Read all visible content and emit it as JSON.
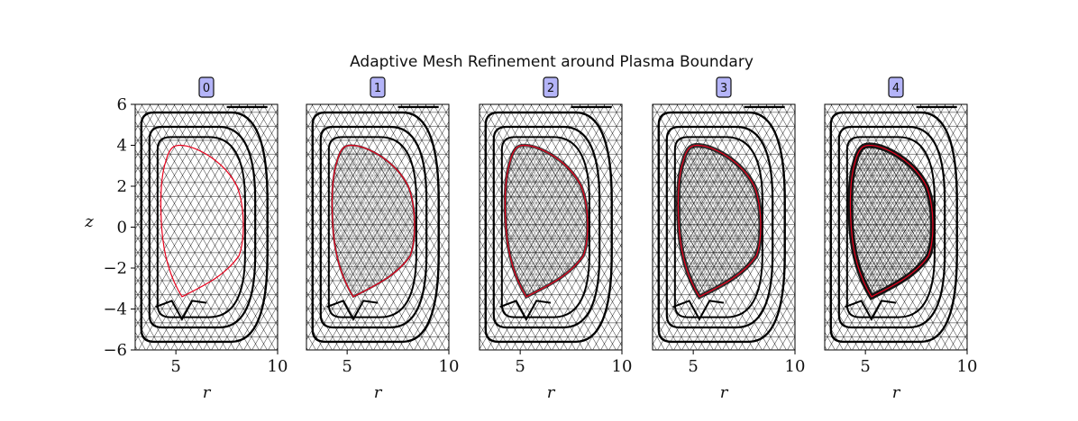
{
  "figure": {
    "title": "Adaptive Mesh Refinement around Plasma Boundary",
    "ylabel": "z",
    "xlabel": "r",
    "y_ticks": [
      "6",
      "4",
      "2",
      "0",
      "−2",
      "−4",
      "−6"
    ],
    "x_ticks": [
      "5",
      "10"
    ],
    "colors": {
      "mesh": "#000000",
      "boundary": "#e8001c",
      "badge_fill": "#b4b4f8",
      "badge_stroke": "#111111"
    },
    "panels": [
      {
        "badge": "0",
        "refinement_level": 0
      },
      {
        "badge": "1",
        "refinement_level": 1
      },
      {
        "badge": "2",
        "refinement_level": 2
      },
      {
        "badge": "3",
        "refinement_level": 3
      },
      {
        "badge": "4",
        "refinement_level": 4
      }
    ]
  }
}
